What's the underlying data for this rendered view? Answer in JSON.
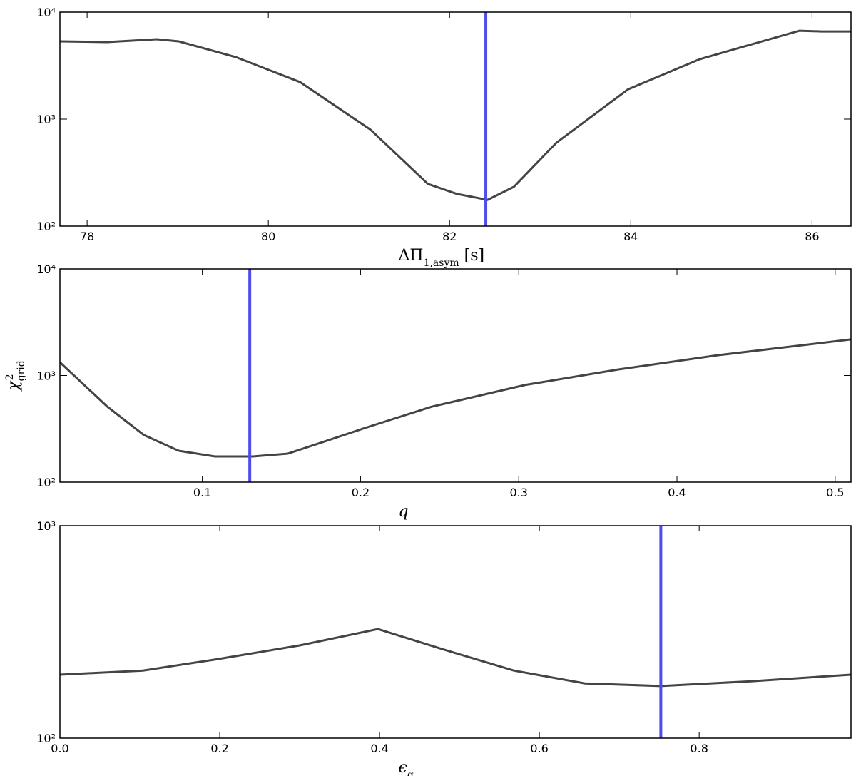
{
  "chart_data": [
    {
      "type": "line",
      "log_y": true,
      "xlabel": [
        {
          "text": "ΔΠ"
        },
        {
          "text": "1,asym",
          "script": "sub"
        },
        {
          "text": " [s]"
        }
      ],
      "x": [
        77.7,
        78.22,
        78.77,
        79.01,
        79.64,
        80.35,
        81.13,
        81.76,
        82.08,
        82.42,
        82.71,
        83.18,
        83.97,
        84.76,
        85.86,
        86.1,
        86.43
      ],
      "series": [
        {
          "color": "#444444",
          "values": [
            5330,
            5250,
            5580,
            5330,
            3800,
            2220,
            794,
            248,
            200,
            176,
            233,
            603,
            1900,
            3630,
            6700,
            6600,
            6600
          ]
        }
      ],
      "vline": 82.4,
      "vline_color": "#4c4cf0",
      "xlim": [
        77.7,
        86.43
      ],
      "xticks": [
        78,
        80,
        82,
        84,
        86
      ],
      "ylim": [
        100,
        10000
      ],
      "yticks": [
        {
          "value": 100,
          "label": "10²"
        },
        {
          "value": 1000,
          "label": "10³"
        },
        {
          "value": 10000,
          "label": "10⁴"
        }
      ]
    },
    {
      "type": "line",
      "log_y": true,
      "xlabel": [
        {
          "text": "q",
          "style": "italic"
        }
      ],
      "ylabel": [
        {
          "text": "χ",
          "style": "italic"
        },
        {
          "text": "grid",
          "script": "sub"
        },
        {
          "text": "2",
          "script": "sup"
        }
      ],
      "x": [
        0.01,
        0.04,
        0.063,
        0.085,
        0.108,
        0.132,
        0.154,
        0.176,
        0.203,
        0.245,
        0.304,
        0.363,
        0.426,
        0.51
      ],
      "series": [
        {
          "color": "#444444",
          "values": [
            1330,
            510,
            277,
            197,
            174,
            174,
            185,
            237,
            323,
            510,
            815,
            1140,
            1550,
            2180
          ]
        }
      ],
      "vline": 0.13,
      "vline_color": "#4c4cf0",
      "xlim": [
        0.01,
        0.51
      ],
      "xticks": [
        0.1,
        0.2,
        0.3,
        0.4,
        0.5
      ],
      "ylim": [
        100,
        10000
      ],
      "yticks": [
        {
          "value": 100,
          "label": "10²"
        },
        {
          "value": 1000,
          "label": "10³"
        },
        {
          "value": 10000,
          "label": "10⁴"
        }
      ]
    },
    {
      "type": "line",
      "log_y": true,
      "xlabel": [
        {
          "text": "ϵ",
          "style": "italic"
        },
        {
          "text": "g",
          "script": "sub"
        }
      ],
      "x": [
        0,
        0.104,
        0.193,
        0.3,
        0.398,
        0.479,
        0.568,
        0.657,
        0.752,
        0.863,
        0.99
      ],
      "series": [
        {
          "color": "#444444",
          "values": [
            199,
            208,
            234,
            273,
            326,
            262,
            208,
            181,
            176,
            185,
            199
          ]
        }
      ],
      "vline": 0.752,
      "vline_color": "#4c4cf0",
      "xlim": [
        0,
        0.99
      ],
      "xticks": [
        {
          "value": 0,
          "label": "0.0"
        },
        0.2,
        0.4,
        0.6,
        0.8
      ],
      "ylim": [
        100,
        1000
      ],
      "yticks": [
        {
          "value": 100,
          "label": "10²"
        },
        {
          "value": 1000,
          "label": "10³"
        }
      ]
    }
  ]
}
